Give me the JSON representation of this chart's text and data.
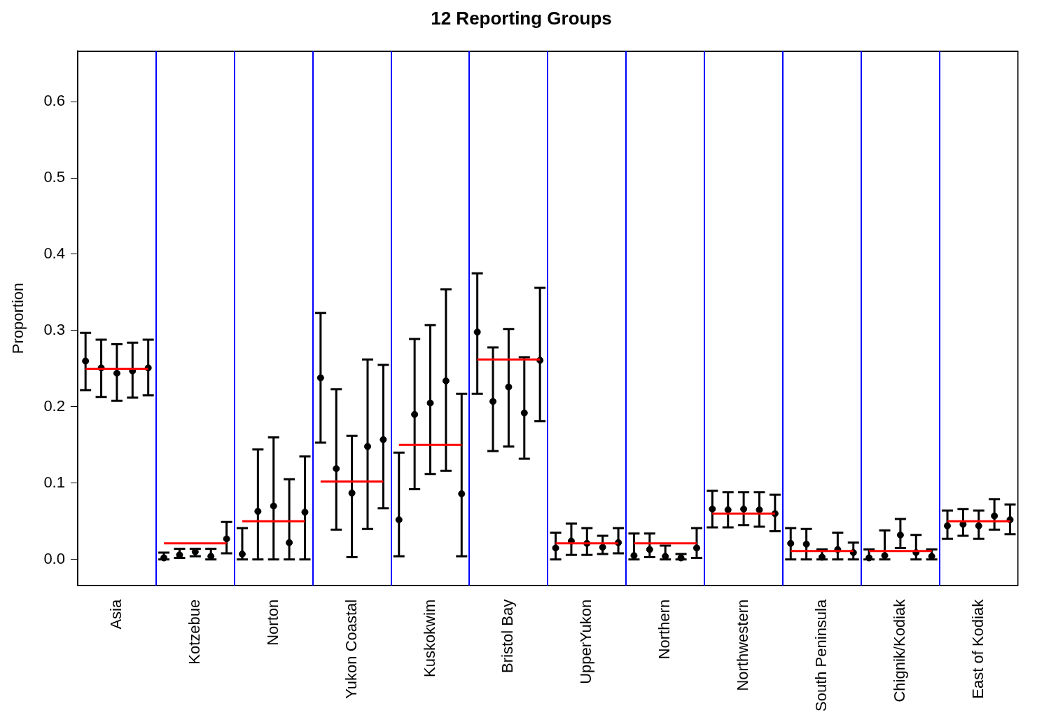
{
  "chart_data": {
    "type": "scatter",
    "title": "12 Reporting Groups",
    "ylabel": "Proportion",
    "categories": [
      null,
      null,
      "Asia",
      null,
      null,
      null,
      null,
      "Kotzebue",
      null,
      null,
      null,
      null,
      "Norton",
      null,
      null,
      null,
      null,
      "Yukon Coastal",
      null,
      null,
      null,
      null,
      "Kuskokwim",
      null,
      null,
      null,
      null,
      "Bristol Bay",
      null,
      null,
      null,
      null,
      "UpperYukon",
      null,
      null,
      null,
      null,
      "Northern",
      null,
      null,
      null,
      null,
      "Northwestern",
      null,
      null,
      null,
      null,
      "South Peninsula",
      null,
      null,
      null,
      null,
      "Chignik/Kodiak",
      null,
      null,
      null,
      null,
      "East of Kodiak",
      null,
      null
    ],
    "ylim": [
      -0.034,
      0.666
    ],
    "yticks": [
      {
        "value": 0,
        "label": "0.0"
      },
      {
        "value": 0.1,
        "label": "0.1"
      },
      {
        "value": 0.2,
        "label": "0.2"
      },
      {
        "value": 0.3,
        "label": "0.3"
      },
      {
        "value": 0.4,
        "label": "0.4"
      },
      {
        "value": 0.5,
        "label": "0.5"
      },
      {
        "value": 0.6,
        "label": "0.6"
      }
    ],
    "legend": false,
    "series": [
      {
        "color": "#000000",
        "marker": "circle",
        "values": [
          0.26,
          0.251,
          0.244,
          0.247,
          0.251,
          0.002,
          0.006,
          0.01,
          0.004,
          0.027,
          0.007,
          0.063,
          0.07,
          0.022,
          0.062,
          0.238,
          0.119,
          0.087,
          0.148,
          0.157,
          0.052,
          0.19,
          0.205,
          0.234,
          0.086,
          0.298,
          0.207,
          0.226,
          0.192,
          0.261,
          0.015,
          0.024,
          0.021,
          0.016,
          0.022,
          0.005,
          0.013,
          0.004,
          0.002,
          0.015,
          0.066,
          0.065,
          0.066,
          0.065,
          0.06,
          0.021,
          0.02,
          0.003,
          0.013,
          0.009,
          0.002,
          0.005,
          0.032,
          0.009,
          0.004,
          0.044,
          0.046,
          0.044,
          0.057,
          0.052
        ],
        "errors": [
          [
            0.222,
            0.297
          ],
          [
            0.213,
            0.288
          ],
          [
            0.208,
            0.282
          ],
          [
            0.212,
            0.284
          ],
          [
            0.215,
            0.288
          ],
          [
            0,
            0.009
          ],
          [
            0.002,
            0.014
          ],
          [
            0.004,
            0.014
          ],
          [
            0,
            0.014
          ],
          [
            0.008,
            0.049
          ],
          [
            0,
            0.041
          ],
          [
            0,
            0.144
          ],
          [
            0,
            0.16
          ],
          [
            0,
            0.105
          ],
          [
            0,
            0.135
          ],
          [
            0.153,
            0.323
          ],
          [
            0.039,
            0.223
          ],
          [
            0.003,
            0.162
          ],
          [
            0.04,
            0.262
          ],
          [
            0.067,
            0.255
          ],
          [
            0.004,
            0.14
          ],
          [
            0.092,
            0.289
          ],
          [
            0.112,
            0.307
          ],
          [
            0.116,
            0.354
          ],
          [
            0.004,
            0.217
          ],
          [
            0.217,
            0.375
          ],
          [
            0.142,
            0.278
          ],
          [
            0.148,
            0.302
          ],
          [
            0.132,
            0.265
          ],
          [
            0.181,
            0.356
          ],
          [
            0,
            0.035
          ],
          [
            0.006,
            0.047
          ],
          [
            0.006,
            0.041
          ],
          [
            0.007,
            0.031
          ],
          [
            0.008,
            0.041
          ],
          [
            0,
            0.034
          ],
          [
            0.003,
            0.034
          ],
          [
            0,
            0.018
          ],
          [
            0,
            0.007
          ],
          [
            0.002,
            0.041
          ],
          [
            0.042,
            0.09
          ],
          [
            0.042,
            0.088
          ],
          [
            0.045,
            0.088
          ],
          [
            0.043,
            0.088
          ],
          [
            0.037,
            0.085
          ],
          [
            0,
            0.041
          ],
          [
            0,
            0.04
          ],
          [
            0,
            0.013
          ],
          [
            0,
            0.035
          ],
          [
            0,
            0.022
          ],
          [
            0,
            0.013
          ],
          [
            0,
            0.038
          ],
          [
            0.015,
            0.053
          ],
          [
            0,
            0.032
          ],
          [
            0,
            0.013
          ],
          [
            0.027,
            0.064
          ],
          [
            0.031,
            0.066
          ],
          [
            0.027,
            0.064
          ],
          [
            0.039,
            0.079
          ],
          [
            0.033,
            0.072
          ]
        ]
      },
      {
        "type": "line",
        "color": "#ff0000",
        "values": [
          0.25,
          0.25,
          0.25,
          0.25,
          0.25,
          null,
          null,
          null,
          null,
          null,
          null,
          null,
          null,
          null,
          null,
          null,
          null,
          null,
          null,
          null,
          null,
          null,
          null,
          null,
          null,
          null,
          null,
          null,
          null,
          null,
          null,
          null,
          null,
          null,
          null,
          null,
          null,
          null,
          null,
          null,
          null,
          null,
          null,
          null,
          null,
          null,
          null,
          null,
          null,
          null,
          null,
          null,
          null,
          null,
          null,
          null,
          null,
          null,
          null,
          null
        ]
      },
      {
        "type": "line",
        "color": "#ff0000",
        "values": [
          null,
          null,
          null,
          null,
          null,
          0.021,
          0.021,
          0.021,
          0.021,
          0.021,
          null,
          null,
          null,
          null,
          null,
          null,
          null,
          null,
          null,
          null,
          null,
          null,
          null,
          null,
          null,
          null,
          null,
          null,
          null,
          null,
          null,
          null,
          null,
          null,
          null,
          null,
          null,
          null,
          null,
          null,
          null,
          null,
          null,
          null,
          null,
          null,
          null,
          null,
          null,
          null,
          null,
          null,
          null,
          null,
          null,
          null,
          null,
          null,
          null,
          null
        ]
      },
      {
        "type": "line",
        "color": "#ff0000",
        "values": [
          null,
          null,
          null,
          null,
          null,
          null,
          null,
          null,
          null,
          null,
          0.05,
          0.05,
          0.05,
          0.05,
          0.05,
          null,
          null,
          null,
          null,
          null,
          null,
          null,
          null,
          null,
          null,
          null,
          null,
          null,
          null,
          null,
          null,
          null,
          null,
          null,
          null,
          null,
          null,
          null,
          null,
          null,
          null,
          null,
          null,
          null,
          null,
          null,
          null,
          null,
          null,
          null,
          null,
          null,
          null,
          null,
          null,
          null,
          null,
          null,
          null,
          null
        ]
      },
      {
        "type": "line",
        "color": "#ff0000",
        "values": [
          null,
          null,
          null,
          null,
          null,
          null,
          null,
          null,
          null,
          null,
          null,
          null,
          null,
          null,
          null,
          0.102,
          0.102,
          0.102,
          0.102,
          0.102,
          null,
          null,
          null,
          null,
          null,
          null,
          null,
          null,
          null,
          null,
          null,
          null,
          null,
          null,
          null,
          null,
          null,
          null,
          null,
          null,
          null,
          null,
          null,
          null,
          null,
          null,
          null,
          null,
          null,
          null,
          null,
          null,
          null,
          null,
          null,
          null,
          null,
          null,
          null,
          null
        ]
      },
      {
        "type": "line",
        "color": "#ff0000",
        "values": [
          null,
          null,
          null,
          null,
          null,
          null,
          null,
          null,
          null,
          null,
          null,
          null,
          null,
          null,
          null,
          null,
          null,
          null,
          null,
          null,
          0.15,
          0.15,
          0.15,
          0.15,
          0.15,
          null,
          null,
          null,
          null,
          null,
          null,
          null,
          null,
          null,
          null,
          null,
          null,
          null,
          null,
          null,
          null,
          null,
          null,
          null,
          null,
          null,
          null,
          null,
          null,
          null,
          null,
          null,
          null,
          null,
          null,
          null,
          null,
          null,
          null,
          null
        ]
      },
      {
        "type": "line",
        "color": "#ff0000",
        "values": [
          null,
          null,
          null,
          null,
          null,
          null,
          null,
          null,
          null,
          null,
          null,
          null,
          null,
          null,
          null,
          null,
          null,
          null,
          null,
          null,
          null,
          null,
          null,
          null,
          null,
          0.262,
          0.262,
          0.262,
          0.262,
          0.262,
          null,
          null,
          null,
          null,
          null,
          null,
          null,
          null,
          null,
          null,
          null,
          null,
          null,
          null,
          null,
          null,
          null,
          null,
          null,
          null,
          null,
          null,
          null,
          null,
          null,
          null,
          null,
          null,
          null,
          null
        ]
      },
      {
        "type": "line",
        "color": "#ff0000",
        "values": [
          null,
          null,
          null,
          null,
          null,
          null,
          null,
          null,
          null,
          null,
          null,
          null,
          null,
          null,
          null,
          null,
          null,
          null,
          null,
          null,
          null,
          null,
          null,
          null,
          null,
          null,
          null,
          null,
          null,
          null,
          0.021,
          0.021,
          0.021,
          0.021,
          0.021,
          null,
          null,
          null,
          null,
          null,
          null,
          null,
          null,
          null,
          null,
          null,
          null,
          null,
          null,
          null,
          null,
          null,
          null,
          null,
          null,
          null,
          null,
          null,
          null,
          null
        ]
      },
      {
        "type": "line",
        "color": "#ff0000",
        "values": [
          null,
          null,
          null,
          null,
          null,
          null,
          null,
          null,
          null,
          null,
          null,
          null,
          null,
          null,
          null,
          null,
          null,
          null,
          null,
          null,
          null,
          null,
          null,
          null,
          null,
          null,
          null,
          null,
          null,
          null,
          null,
          null,
          null,
          null,
          null,
          0.021,
          0.021,
          0.021,
          0.021,
          0.021,
          null,
          null,
          null,
          null,
          null,
          null,
          null,
          null,
          null,
          null,
          null,
          null,
          null,
          null,
          null,
          null,
          null,
          null,
          null,
          null
        ]
      },
      {
        "type": "line",
        "color": "#ff0000",
        "values": [
          null,
          null,
          null,
          null,
          null,
          null,
          null,
          null,
          null,
          null,
          null,
          null,
          null,
          null,
          null,
          null,
          null,
          null,
          null,
          null,
          null,
          null,
          null,
          null,
          null,
          null,
          null,
          null,
          null,
          null,
          null,
          null,
          null,
          null,
          null,
          null,
          null,
          null,
          null,
          null,
          0.06,
          0.06,
          0.06,
          0.06,
          0.06,
          null,
          null,
          null,
          null,
          null,
          null,
          null,
          null,
          null,
          null,
          null,
          null,
          null,
          null,
          null
        ]
      },
      {
        "type": "line",
        "color": "#ff0000",
        "values": [
          null,
          null,
          null,
          null,
          null,
          null,
          null,
          null,
          null,
          null,
          null,
          null,
          null,
          null,
          null,
          null,
          null,
          null,
          null,
          null,
          null,
          null,
          null,
          null,
          null,
          null,
          null,
          null,
          null,
          null,
          null,
          null,
          null,
          null,
          null,
          null,
          null,
          null,
          null,
          null,
          null,
          null,
          null,
          null,
          null,
          0.011,
          0.011,
          0.011,
          0.011,
          0.011,
          null,
          null,
          null,
          null,
          null,
          null,
          null,
          null,
          null,
          null
        ]
      },
      {
        "type": "line",
        "color": "#ff0000",
        "values": [
          null,
          null,
          null,
          null,
          null,
          null,
          null,
          null,
          null,
          null,
          null,
          null,
          null,
          null,
          null,
          null,
          null,
          null,
          null,
          null,
          null,
          null,
          null,
          null,
          null,
          null,
          null,
          null,
          null,
          null,
          null,
          null,
          null,
          null,
          null,
          null,
          null,
          null,
          null,
          null,
          null,
          null,
          null,
          null,
          null,
          null,
          null,
          null,
          null,
          null,
          0.011,
          0.011,
          0.011,
          0.011,
          0.011,
          null,
          null,
          null,
          null,
          null
        ]
      },
      {
        "type": "line",
        "color": "#ff0000",
        "values": [
          null,
          null,
          null,
          null,
          null,
          null,
          null,
          null,
          null,
          null,
          null,
          null,
          null,
          null,
          null,
          null,
          null,
          null,
          null,
          null,
          null,
          null,
          null,
          null,
          null,
          null,
          null,
          null,
          null,
          null,
          null,
          null,
          null,
          null,
          null,
          null,
          null,
          null,
          null,
          null,
          null,
          null,
          null,
          null,
          null,
          null,
          null,
          null,
          null,
          null,
          null,
          null,
          null,
          null,
          null,
          0.05,
          0.05,
          0.05,
          0.05,
          0.05
        ]
      }
    ]
  }
}
